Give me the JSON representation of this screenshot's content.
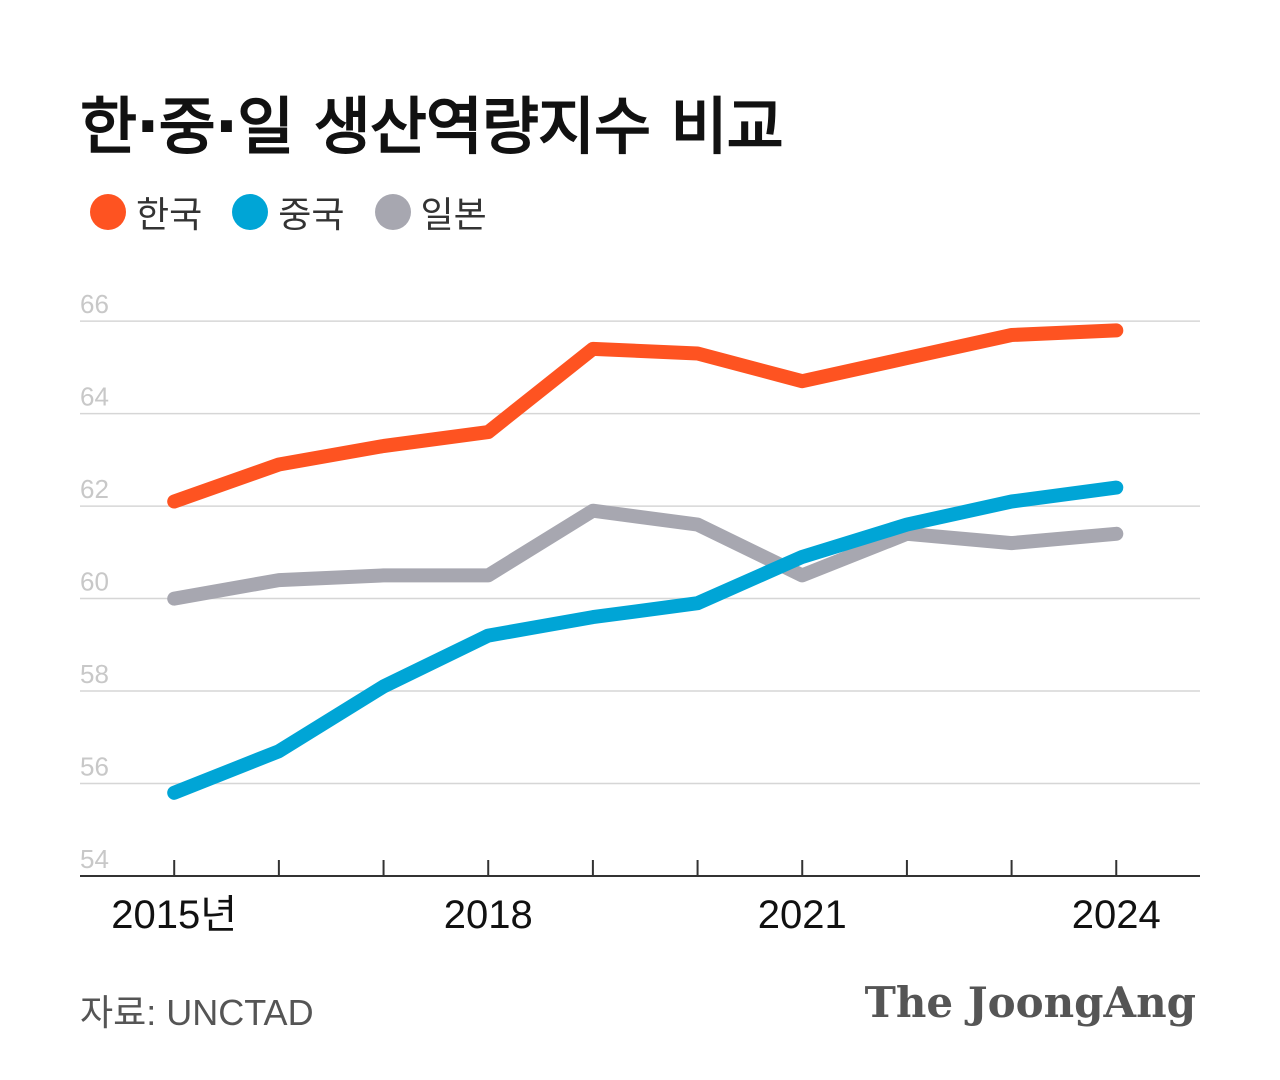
{
  "title": "한·중·일 생산역량지수 비교",
  "source": "자료: UNCTAD",
  "brand": "The JoongAng",
  "colors": {
    "korea": "#fe5321",
    "china": "#00a5d6",
    "japan": "#a7a7b0",
    "grid": "#d6d6d6",
    "axis": "#333333",
    "tick_text": "#c8c8c8"
  },
  "chart_data": {
    "type": "line",
    "x": [
      2015,
      2016,
      2017,
      2018,
      2019,
      2020,
      2021,
      2022,
      2023,
      2024
    ],
    "x_tick_labels": [
      {
        "x": 2015,
        "label": "2015년"
      },
      {
        "x": 2018,
        "label": "2018"
      },
      {
        "x": 2021,
        "label": "2021"
      },
      {
        "x": 2024,
        "label": "2024"
      }
    ],
    "y_ticks": [
      "54",
      "56",
      "58",
      "60",
      "62",
      "64",
      "66"
    ],
    "ylim": [
      54,
      66.5
    ],
    "xlim": [
      2014.1,
      2024.8
    ],
    "grid": true,
    "legend_position": "top-left",
    "series": [
      {
        "key": "korea",
        "name": "한국",
        "values": [
          62.1,
          62.9,
          63.3,
          63.6,
          65.4,
          65.3,
          64.7,
          65.2,
          65.7,
          65.8
        ]
      },
      {
        "key": "china",
        "name": "중국",
        "values": [
          55.8,
          56.7,
          58.1,
          59.2,
          59.6,
          59.9,
          60.9,
          61.6,
          62.1,
          62.4
        ]
      },
      {
        "key": "japan",
        "name": "일본",
        "values": [
          60.0,
          60.4,
          60.5,
          60.5,
          61.9,
          61.6,
          60.5,
          61.4,
          61.2,
          61.4
        ]
      }
    ]
  }
}
